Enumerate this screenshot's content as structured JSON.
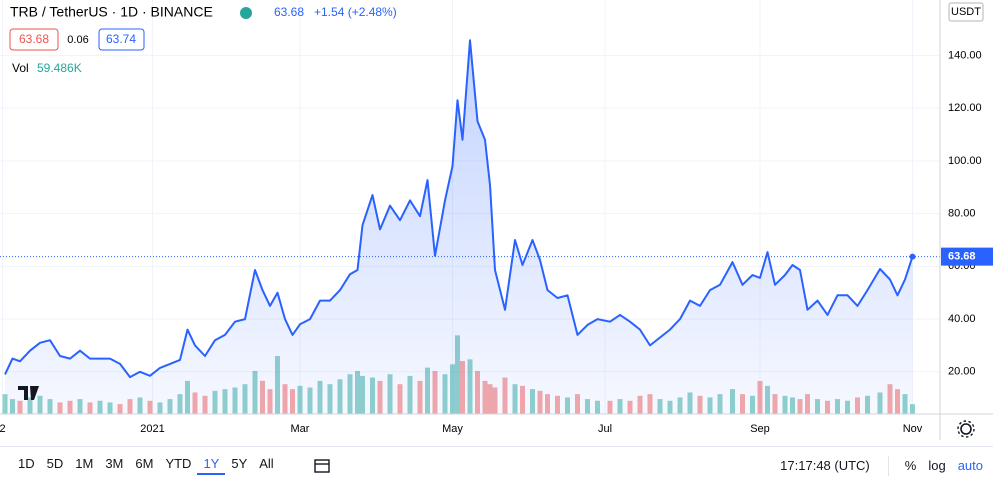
{
  "header": {
    "symbol": "TRB / TetherUS · 1D · BINANCE",
    "last": "63.68",
    "change": "+1.54 (+2.48%)",
    "bid": "63.68",
    "spread": "0.06",
    "ask": "63.74",
    "vol_label": "Vol",
    "vol_value": "59.486K"
  },
  "chart_data": {
    "type": "line",
    "color": "#2962ff",
    "grid": true,
    "y_unit": "USDT",
    "x": [
      -59,
      -56,
      -53,
      -49,
      -45,
      -41,
      -37,
      -33,
      -29,
      -25,
      -21,
      -17,
      -13,
      -9,
      -5,
      -1,
      3,
      7,
      11,
      14,
      17,
      21,
      25,
      29,
      33,
      37,
      41,
      44,
      47,
      50,
      53,
      56,
      59,
      63,
      67,
      71,
      75,
      79,
      82,
      84,
      88,
      91,
      95,
      99,
      103,
      107,
      110,
      113,
      117,
      120,
      122,
      124,
      127,
      130,
      133,
      135,
      137,
      141,
      145,
      148,
      152,
      155,
      158,
      162,
      166,
      170,
      174,
      178,
      183,
      187,
      191,
      195,
      199,
      203,
      207,
      211,
      215,
      219,
      223,
      227,
      232,
      236,
      240,
      243,
      246,
      249,
      253,
      256,
      259,
      262,
      266,
      270,
      274,
      278,
      282,
      286,
      291,
      295,
      298,
      301,
      304
    ],
    "values": [
      19,
      25,
      24,
      28,
      31,
      32,
      26,
      25,
      28,
      25,
      25,
      25,
      23,
      18,
      20,
      18.5,
      21.5,
      23,
      24.5,
      36,
      30,
      26,
      32,
      34,
      39,
      40,
      58.6,
      51,
      45,
      50,
      40,
      34,
      38,
      40,
      47,
      47,
      51,
      57,
      58.6,
      75.6,
      87,
      74,
      83,
      77.5,
      85,
      79,
      92.7,
      64,
      85,
      98,
      123,
      108,
      145.7,
      115,
      108,
      90.8,
      58.6,
      43.5,
      70,
      60.5,
      70,
      62.4,
      51,
      48,
      49,
      34,
      37.8,
      40,
      39,
      41.6,
      39,
      36,
      30,
      33,
      36,
      40,
      47,
      45,
      51,
      53,
      61.6,
      53,
      56.7,
      55.6,
      65.4,
      53,
      56.7,
      60.5,
      58.6,
      43.5,
      47,
      41.6,
      49,
      49,
      45,
      51,
      59,
      55,
      49,
      55,
      63.68
    ],
    "last_price": 63.68,
    "volume": {
      "up_color": "#26a69a",
      "down_color": "#ef5350",
      "ylim": [
        0,
        2500
      ],
      "values": [
        120,
        90,
        80,
        100,
        110,
        90,
        70,
        80,
        90,
        70,
        80,
        70,
        60,
        90,
        100,
        80,
        70,
        90,
        120,
        200,
        130,
        110,
        140,
        150,
        160,
        180,
        260,
        200,
        150,
        350,
        180,
        150,
        170,
        160,
        200,
        180,
        210,
        240,
        260,
        230,
        220,
        200,
        240,
        180,
        230,
        200,
        280,
        260,
        240,
        300,
        475,
        320,
        330,
        260,
        200,
        180,
        160,
        220,
        180,
        170,
        150,
        140,
        120,
        110,
        100,
        120,
        90,
        80,
        80,
        90,
        80,
        110,
        120,
        90,
        80,
        100,
        130,
        110,
        100,
        120,
        150,
        120,
        110,
        200,
        170,
        120,
        110,
        100,
        90,
        120,
        90,
        80,
        90,
        80,
        100,
        110,
        130,
        180,
        150,
        120,
        59.486
      ]
    },
    "xlim": [
      -61,
      315
    ],
    "xticks": [
      {
        "value": -60,
        "label": "2"
      },
      {
        "value": 0,
        "label": "2021"
      },
      {
        "value": 59,
        "label": "Mar"
      },
      {
        "value": 120,
        "label": "May"
      },
      {
        "value": 181,
        "label": "Jul"
      },
      {
        "value": 243,
        "label": "Sep"
      },
      {
        "value": 304,
        "label": "Nov"
      }
    ],
    "ylim": [
      4,
      161
    ],
    "yticks": [
      {
        "value": 20,
        "label": "20.00"
      },
      {
        "value": 40,
        "label": "40.00"
      },
      {
        "value": 60,
        "label": "60.00"
      },
      {
        "value": 80,
        "label": "80.00"
      },
      {
        "value": 100,
        "label": "100.00"
      },
      {
        "value": 120,
        "label": "120.00"
      },
      {
        "value": 140,
        "label": "140.00"
      }
    ]
  },
  "toolbar": {
    "ranges": [
      "1D",
      "5D",
      "1M",
      "3M",
      "6M",
      "YTD",
      "1Y",
      "5Y",
      "All"
    ],
    "active": 6,
    "time": "17:17:48 (UTC)",
    "options": [
      "%",
      "log",
      "auto"
    ]
  }
}
